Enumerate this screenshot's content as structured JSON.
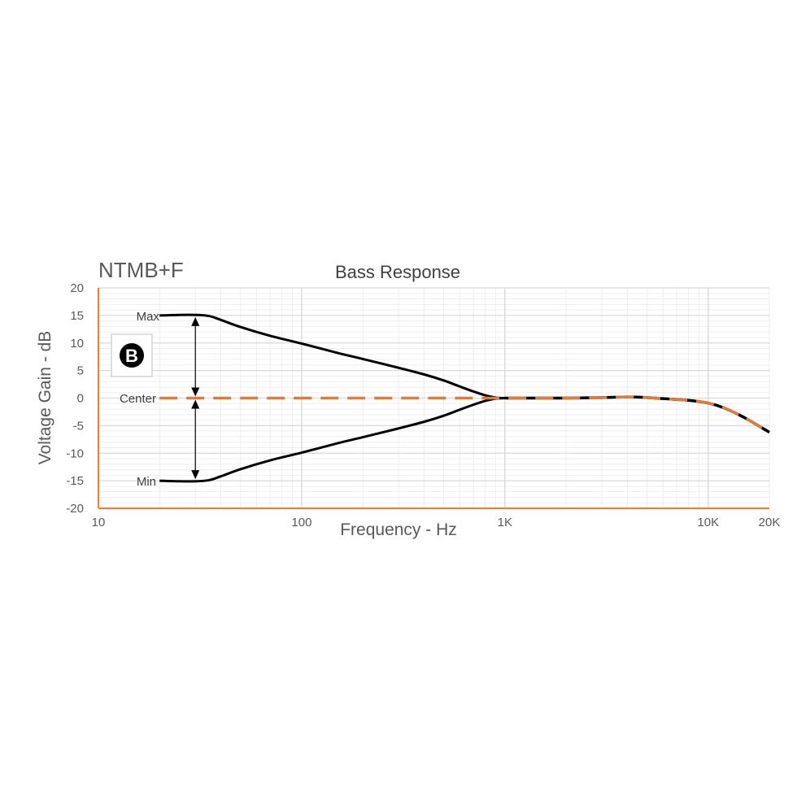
{
  "chart_data": {
    "type": "line",
    "model": "NTMB+F",
    "title": "Bass Response",
    "xlabel": "Frequency - Hz",
    "ylabel": "Voltage Gain - dB",
    "x_scale": "log",
    "xlim": [
      10,
      20000
    ],
    "ylim": [
      -20,
      20
    ],
    "x_ticks": [
      {
        "value": 10,
        "label": "10"
      },
      {
        "value": 100,
        "label": "100"
      },
      {
        "value": 1000,
        "label": "1K"
      },
      {
        "value": 10000,
        "label": "10K"
      },
      {
        "value": 20000,
        "label": "20K"
      }
    ],
    "y_ticks": [
      20,
      15,
      10,
      5,
      0,
      -5,
      -10,
      -15,
      -20
    ],
    "grid": true,
    "badge": "B",
    "annotations": {
      "max": "Max",
      "center": "Center",
      "min": "Min"
    },
    "colors": {
      "curves": "#000000",
      "center_dash": "#e07b39",
      "axis": "#ed7d31",
      "grid_major": "#d9d9d9",
      "grid_minor": "#eeeeee"
    },
    "series": [
      {
        "name": "Max",
        "style": "solid-black",
        "x": [
          20,
          25,
          30,
          35,
          40,
          50,
          70,
          100,
          150,
          200,
          300,
          400,
          500,
          600,
          700,
          800,
          900,
          1000,
          1500,
          2000,
          3000,
          4000,
          5000,
          6000,
          8000,
          10000,
          12000,
          15000,
          20000
        ],
        "y": [
          15,
          15.1,
          15.1,
          14.9,
          14.2,
          12.9,
          11.3,
          9.9,
          8.2,
          7.1,
          5.5,
          4.3,
          3.2,
          2.1,
          1.2,
          0.5,
          0.1,
          0,
          0,
          0,
          0.1,
          0.2,
          0.1,
          -0.1,
          -0.4,
          -0.9,
          -1.8,
          -3.5,
          -6.2
        ]
      },
      {
        "name": "Center",
        "style": "dashed-orange",
        "x": [
          20,
          50,
          100,
          200,
          500,
          800,
          1000,
          2000,
          3000,
          4000,
          5000,
          6000,
          8000,
          10000,
          12000,
          15000,
          20000
        ],
        "y": [
          0,
          0,
          0,
          0,
          0,
          0,
          0,
          0,
          0.1,
          0.2,
          0.1,
          -0.1,
          -0.4,
          -0.9,
          -1.8,
          -3.5,
          -6.2
        ]
      },
      {
        "name": "Min",
        "style": "solid-black",
        "x": [
          20,
          25,
          30,
          35,
          40,
          50,
          70,
          100,
          150,
          200,
          300,
          400,
          500,
          600,
          700,
          800,
          900,
          1000
        ],
        "y": [
          -15,
          -15.1,
          -15.1,
          -14.9,
          -14.2,
          -12.9,
          -11.3,
          -9.9,
          -8.2,
          -7.1,
          -5.5,
          -4.3,
          -3.2,
          -2.1,
          -1.2,
          -0.5,
          -0.1,
          0
        ]
      }
    ],
    "range_arrow": {
      "x": 30,
      "top": 15,
      "center": 0,
      "bottom": -15
    }
  }
}
